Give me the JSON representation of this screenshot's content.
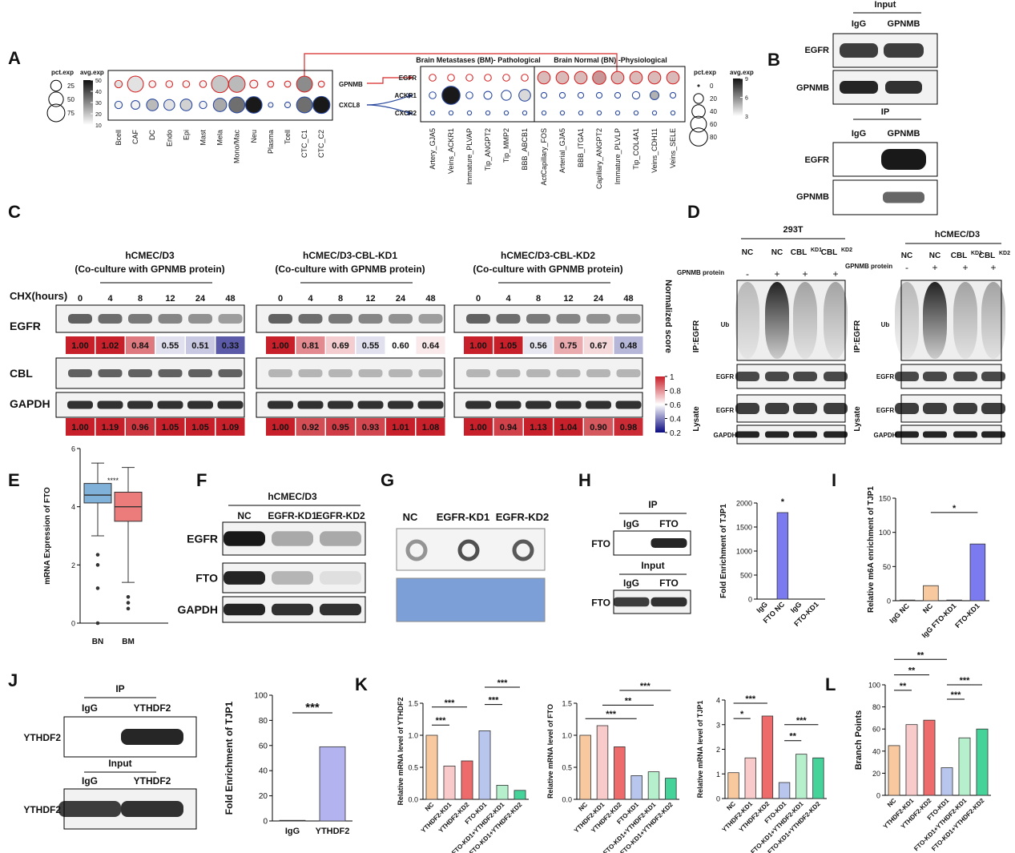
{
  "panel_labels": [
    "A",
    "B",
    "C",
    "D",
    "E",
    "F",
    "G",
    "H",
    "I",
    "J",
    "K",
    "L"
  ],
  "panel_a": {
    "left": {
      "pct_title": "pct.exp",
      "avg_title": "avg.exp",
      "pct_legend": [
        25,
        50,
        75
      ],
      "avg_legend": [
        50,
        40,
        30,
        20,
        10
      ],
      "genes": [
        "GPNMB",
        "CXCL8"
      ],
      "cells": [
        "Bcell",
        "CAF",
        "DC",
        "Endo",
        "Epi",
        "Mast",
        "Mela",
        "Mono/Mac",
        "Neu",
        "Plasma",
        "Tcell",
        "CTC_C1",
        "CTC_C2"
      ],
      "pct": [
        [
          10,
          60,
          8,
          8,
          8,
          8,
          70,
          65,
          12,
          6,
          6,
          60,
          6
        ],
        [
          10,
          15,
          30,
          25,
          30,
          10,
          40,
          60,
          65,
          3,
          5,
          60,
          70
        ]
      ],
      "avg": [
        [
          15,
          15,
          12,
          12,
          12,
          12,
          20,
          22,
          12,
          12,
          12,
          30,
          12
        ],
        [
          12,
          12,
          22,
          15,
          18,
          12,
          25,
          35,
          50,
          12,
          12,
          35,
          50
        ]
      ]
    },
    "right": {
      "group_titles": [
        "Brain Metastases (BM)- Pathological",
        "Brain Normal (BN) -Physiological"
      ],
      "pct_title": "pct.exp",
      "avg_title": "avg.exp",
      "pct_legend": [
        0,
        20,
        40,
        60,
        80
      ],
      "avg_legend": [
        9,
        6,
        3
      ],
      "genes": [
        "EGFR",
        "ACKR1",
        "CXCR2"
      ],
      "cells": [
        "Artery_GJA5",
        "Veins_ACKR1",
        "Immature_PLVAP",
        "Tip_ANGPT2",
        "Tip_MMP2",
        "BBB_ABCB1",
        "ActCapillary_FOS",
        "Arterial_GJA5",
        "BBB_ITGA1",
        "Capillary_ANGPT2",
        "Immature_PLVLP",
        "Tip_COL4A1",
        "Veins_CDH11",
        "Veins_SELE"
      ],
      "pct": [
        [
          8,
          8,
          8,
          8,
          8,
          8,
          35,
          35,
          35,
          40,
          35,
          35,
          35,
          35
        ],
        [
          8,
          80,
          8,
          12,
          20,
          30,
          5,
          5,
          5,
          5,
          5,
          10,
          15,
          5
        ],
        [
          2,
          2,
          2,
          2,
          2,
          2,
          2,
          2,
          2,
          2,
          2,
          2,
          2,
          2
        ]
      ],
      "avg": [
        [
          1,
          1,
          1,
          1,
          1,
          1,
          5,
          5,
          5,
          6,
          5,
          5,
          5,
          5
        ],
        [
          1,
          9,
          1,
          2,
          3,
          4,
          1,
          1,
          1,
          1,
          1,
          2,
          5,
          1
        ],
        [
          1,
          1,
          1,
          1,
          1,
          1,
          1,
          1,
          1,
          1,
          1,
          1,
          1,
          1
        ]
      ]
    }
  },
  "panel_b": {
    "input": {
      "title": "Input",
      "lanes": [
        "IgG",
        "GPNMB"
      ],
      "rows": [
        "EGFR",
        "GPNMB"
      ]
    },
    "ip": {
      "title": "IP",
      "lanes": [
        "IgG",
        "GPNMB"
      ],
      "rows": [
        "EGFR",
        "GPNMB"
      ]
    }
  },
  "panel_c": {
    "time_title": "CHX(hours)",
    "rows": [
      "EGFR",
      "CBL",
      "GAPDH"
    ],
    "groups": [
      {
        "title": "hCMEC/D3",
        "subtitle": "(Co-culture with GPNMB protein)",
        "times": [
          0,
          4,
          8,
          12,
          24,
          48
        ],
        "egfr_scores": {
          "values": [
            1,
            1.02,
            0.84,
            0.55,
            0.51,
            0.33
          ],
          "value_labels": [
            "1.00",
            "1.02",
            "0.84",
            "0.55",
            "0.51",
            "0.33"
          ]
        },
        "gapdh_scores": {
          "values": [
            1,
            1.19,
            0.96,
            1.05,
            1.05,
            1.09
          ],
          "value_labels": [
            "1.00",
            "1.19",
            "0.96",
            "1.05",
            "1.05",
            "1.09"
          ]
        }
      },
      {
        "title": "hCMEC/D3-CBL-KD1",
        "subtitle": "(Co-culture with GPNMB protein)",
        "times": [
          0,
          4,
          8,
          12,
          24,
          48
        ],
        "egfr_scores": {
          "values": [
            1,
            0.81,
            0.69,
            0.55,
            0.6,
            0.64
          ],
          "value_labels": [
            "1.00",
            "0.81",
            "0.69",
            "0.55",
            "0.60",
            "0.64"
          ]
        },
        "gapdh_scores": {
          "values": [
            1,
            0.92,
            0.95,
            0.93,
            1.01,
            1.08
          ],
          "value_labels": [
            "1.00",
            "0.92",
            "0.95",
            "0.93",
            "1.01",
            "1.08"
          ]
        }
      },
      {
        "title": "hCMEC/D3-CBL-KD2",
        "subtitle": "(Co-culture with GPNMB protein)",
        "times": [
          0,
          4,
          8,
          12,
          24,
          48
        ],
        "egfr_scores": {
          "values": [
            1,
            1.05,
            0.56,
            0.75,
            0.67,
            0.48
          ],
          "value_labels": [
            "1.00",
            "1.05",
            "0.56",
            "0.75",
            "0.67",
            "0.48"
          ]
        },
        "gapdh_scores": {
          "values": [
            1,
            0.94,
            1.13,
            1.04,
            0.9,
            0.98
          ],
          "value_labels": [
            "1.00",
            "0.94",
            "1.13",
            "1.04",
            "0.90",
            "0.98"
          ]
        }
      }
    ],
    "colorbar": {
      "title": "Normalized score",
      "range": [
        0.2,
        1
      ],
      "ticks": [
        1,
        0.8,
        0.6,
        0.4,
        0.2
      ]
    }
  },
  "panel_d": [
    {
      "cell": "293T",
      "lanes": [
        {
          "text": "NC"
        },
        {
          "text": "NC"
        },
        {
          "text": "CBL",
          "sup": "KD1"
        },
        {
          "text": "CBL",
          "sup": "KD2"
        }
      ],
      "treatment": "GPNMB  protein",
      "signs": [
        "-",
        "+",
        "+",
        "+"
      ],
      "ip": "IP:EGFR",
      "ip_rows": [
        "Ub",
        "EGFR"
      ],
      "lysate": "Lysate",
      "lysate_rows": [
        "EGFR",
        "GAPDH"
      ]
    },
    {
      "cell": "hCMEC/D3",
      "lanes": [
        {
          "text": "NC"
        },
        {
          "text": "NC"
        },
        {
          "text": "CBL",
          "sup": "KD1"
        },
        {
          "text": "CBL",
          "sup": "KD2"
        }
      ],
      "treatment": "GPNMB  protein",
      "signs": [
        "-",
        "+",
        "+",
        "+"
      ],
      "ip": "IP:EGFR",
      "ip_rows": [
        "Ub",
        "EGFR"
      ],
      "lysate": "Lysate",
      "lysate_rows": [
        "EGFR",
        "GAPDH"
      ]
    }
  ],
  "panel_f": {
    "cell": "hCMEC/D3",
    "lanes": [
      "NC",
      "EGFR-KD1",
      "EGFR-KD2"
    ],
    "rows": [
      "EGFR",
      "FTO",
      "GAPDH"
    ]
  },
  "panel_g": {
    "lanes": [
      "NC",
      "EGFR-KD1",
      "EGFR-KD2"
    ]
  },
  "panel_h_blot": {
    "ip": "IP",
    "ip_lanes": [
      "IgG",
      "FTO"
    ],
    "ip_row": "FTO",
    "input": "Input",
    "input_lanes": [
      "IgG",
      "FTO"
    ],
    "input_row": "FTO"
  },
  "panel_j_blot": {
    "ip": "IP",
    "ip_lanes": [
      "IgG",
      "YTHDF2"
    ],
    "ip_row": "YTHDF2",
    "input": "Input",
    "input_lanes": [
      "IgG",
      "YTHDF2"
    ],
    "input_row": "YTHDF2"
  },
  "chart_data": [
    {
      "type": "box",
      "ylabel": "mRNA Expression of FTO",
      "categories": [
        "BN",
        "BM"
      ],
      "colors": [
        "#7fb1d9",
        "#ec7c7c"
      ],
      "ylim": [
        0,
        6
      ],
      "yticks": [
        0,
        2,
        4,
        6
      ],
      "annotations": [
        "****"
      ],
      "boxes": [
        {
          "whisker_low": 3.0,
          "q1": 4.13,
          "median": 4.4,
          "q3": 4.8,
          "whisker_high": 5.5,
          "outliers": [
            2.35,
            2.0,
            1.2,
            0
          ]
        },
        {
          "whisker_low": 1.4,
          "q1": 3.5,
          "median": 4.0,
          "q3": 4.5,
          "whisker_high": 5.35,
          "outliers": [
            0.9,
            0.7,
            0.5
          ]
        }
      ]
    },
    {
      "type": "bar",
      "ylabel": "Fold Enrichment of TJP1",
      "categories": [
        "IgG",
        "FTO NC",
        "IgG",
        "FTO-KD1"
      ],
      "values": [
        0,
        1800,
        0,
        0
      ],
      "colors": [
        "#7b7bef",
        "#7b7bef",
        "#7b7bef",
        "#7b7bef"
      ],
      "ylim": [
        0,
        2000
      ],
      "yticks": [
        0,
        500,
        1000,
        1500,
        2000
      ],
      "annotations": [
        "*"
      ]
    },
    {
      "type": "bar",
      "ylabel": "Relative m6A enrichment of TJP1",
      "categories": [
        "IgG  NC",
        "NC",
        "IgG  FTO-KD1",
        "FTO-KD1"
      ],
      "values": [
        1,
        22,
        1,
        83
      ],
      "colors": [
        "#f8c89e",
        "#f8c89e",
        "#7b7bef",
        "#7b7bef"
      ],
      "ylim": [
        0,
        150
      ],
      "yticks": [
        0,
        50,
        100,
        150
      ],
      "annotations": [
        "*"
      ]
    },
    {
      "type": "bar",
      "ylabel": "Fold Enrichment of TJP1",
      "categories": [
        "IgG",
        "YTHDF2"
      ],
      "values": [
        0.5,
        59
      ],
      "colors": [
        "#b3b3f0",
        "#b3b3f0"
      ],
      "ylim": [
        0,
        100
      ],
      "yticks": [
        0,
        20,
        40,
        60,
        80,
        100
      ],
      "annotations": [
        "***"
      ]
    },
    {
      "type": "bar",
      "ylabel": "Relative mRNA level of YTHDF2",
      "categories": [
        "NC",
        "YTHDF2-KD1",
        "YTHDF2-KD2",
        "FTO-KD1",
        "FTO-KD1+YTHDF2-KD1",
        "FTO-KD1+YTHDF2-KD2"
      ],
      "values": [
        1.0,
        0.52,
        0.6,
        1.07,
        0.22,
        0.14
      ],
      "colors": [
        "#f8c89e",
        "#f9caca",
        "#ee6b6b",
        "#b8c6ee",
        "#b5efcb",
        "#45d39a"
      ],
      "ylim": [
        0,
        1.5
      ],
      "yticks": [
        {
          "value": 0,
          "label": "0.0"
        },
        {
          "value": 0.5,
          "label": "0.5"
        },
        {
          "value": 1,
          "label": "1.0"
        },
        {
          "value": 1.5,
          "label": "1.5"
        }
      ],
      "annotations": [
        "***",
        "***",
        "***",
        "***"
      ]
    },
    {
      "type": "bar",
      "ylabel": "Relative mRNA level of FTO",
      "categories": [
        "NC",
        "YTHDF2-KD1",
        "YTHDF2-KD2",
        "FTO-KD1",
        "FTO-KD1+YTHDF2-KD1",
        "FTO-KD1+YTHDF2-KD2"
      ],
      "values": [
        1.0,
        1.15,
        0.82,
        0.37,
        0.43,
        0.33
      ],
      "colors": [
        "#f8c89e",
        "#f9caca",
        "#ee6b6b",
        "#b8c6ee",
        "#b5efcb",
        "#45d39a"
      ],
      "ylim": [
        0,
        1.5
      ],
      "yticks": [
        {
          "value": 0,
          "label": "0.0"
        },
        {
          "value": 0.5,
          "label": "0.5"
        },
        {
          "value": 1,
          "label": "1.0"
        },
        {
          "value": 1.5,
          "label": "1.5"
        }
      ],
      "annotations": [
        "***",
        "**",
        "***"
      ]
    },
    {
      "type": "bar",
      "ylabel": "Relative mRNA level of TJP1",
      "categories": [
        "NC",
        "YTHDF2-KD1",
        "YTHDF2-KD2",
        "FTO-KD1",
        "FTO-KD1+YTHDF2-KD1",
        "FTO-KD1+YTHDF2-KD2"
      ],
      "values": [
        1.05,
        1.65,
        3.35,
        0.65,
        1.8,
        1.65
      ],
      "colors": [
        "#f8c89e",
        "#f9caca",
        "#ee6b6b",
        "#b8c6ee",
        "#b5efcb",
        "#45d39a"
      ],
      "ylim": [
        0,
        4
      ],
      "yticks": [
        0,
        1,
        2,
        3,
        4
      ],
      "annotations": [
        "***",
        "*",
        "***",
        "**"
      ]
    },
    {
      "type": "bar",
      "ylabel": "Branch Points",
      "categories": [
        "NC",
        "YTHDF2-KD1",
        "YTHDF2-KD2",
        "FTO-KD1",
        "FTO-KD1+YTHDF2-KD1",
        "FTO-KD1+YTHDF2-KD2"
      ],
      "values": [
        45,
        64,
        68,
        25,
        52,
        60
      ],
      "colors": [
        "#f8c89e",
        "#f9caca",
        "#ee6b6b",
        "#b8c6ee",
        "#b5efcb",
        "#45d39a"
      ],
      "ylim": [
        0,
        100
      ],
      "yticks": [
        0,
        20,
        40,
        60,
        80,
        100
      ],
      "annotations": [
        "**",
        "**",
        "**",
        "***",
        "***"
      ]
    }
  ]
}
